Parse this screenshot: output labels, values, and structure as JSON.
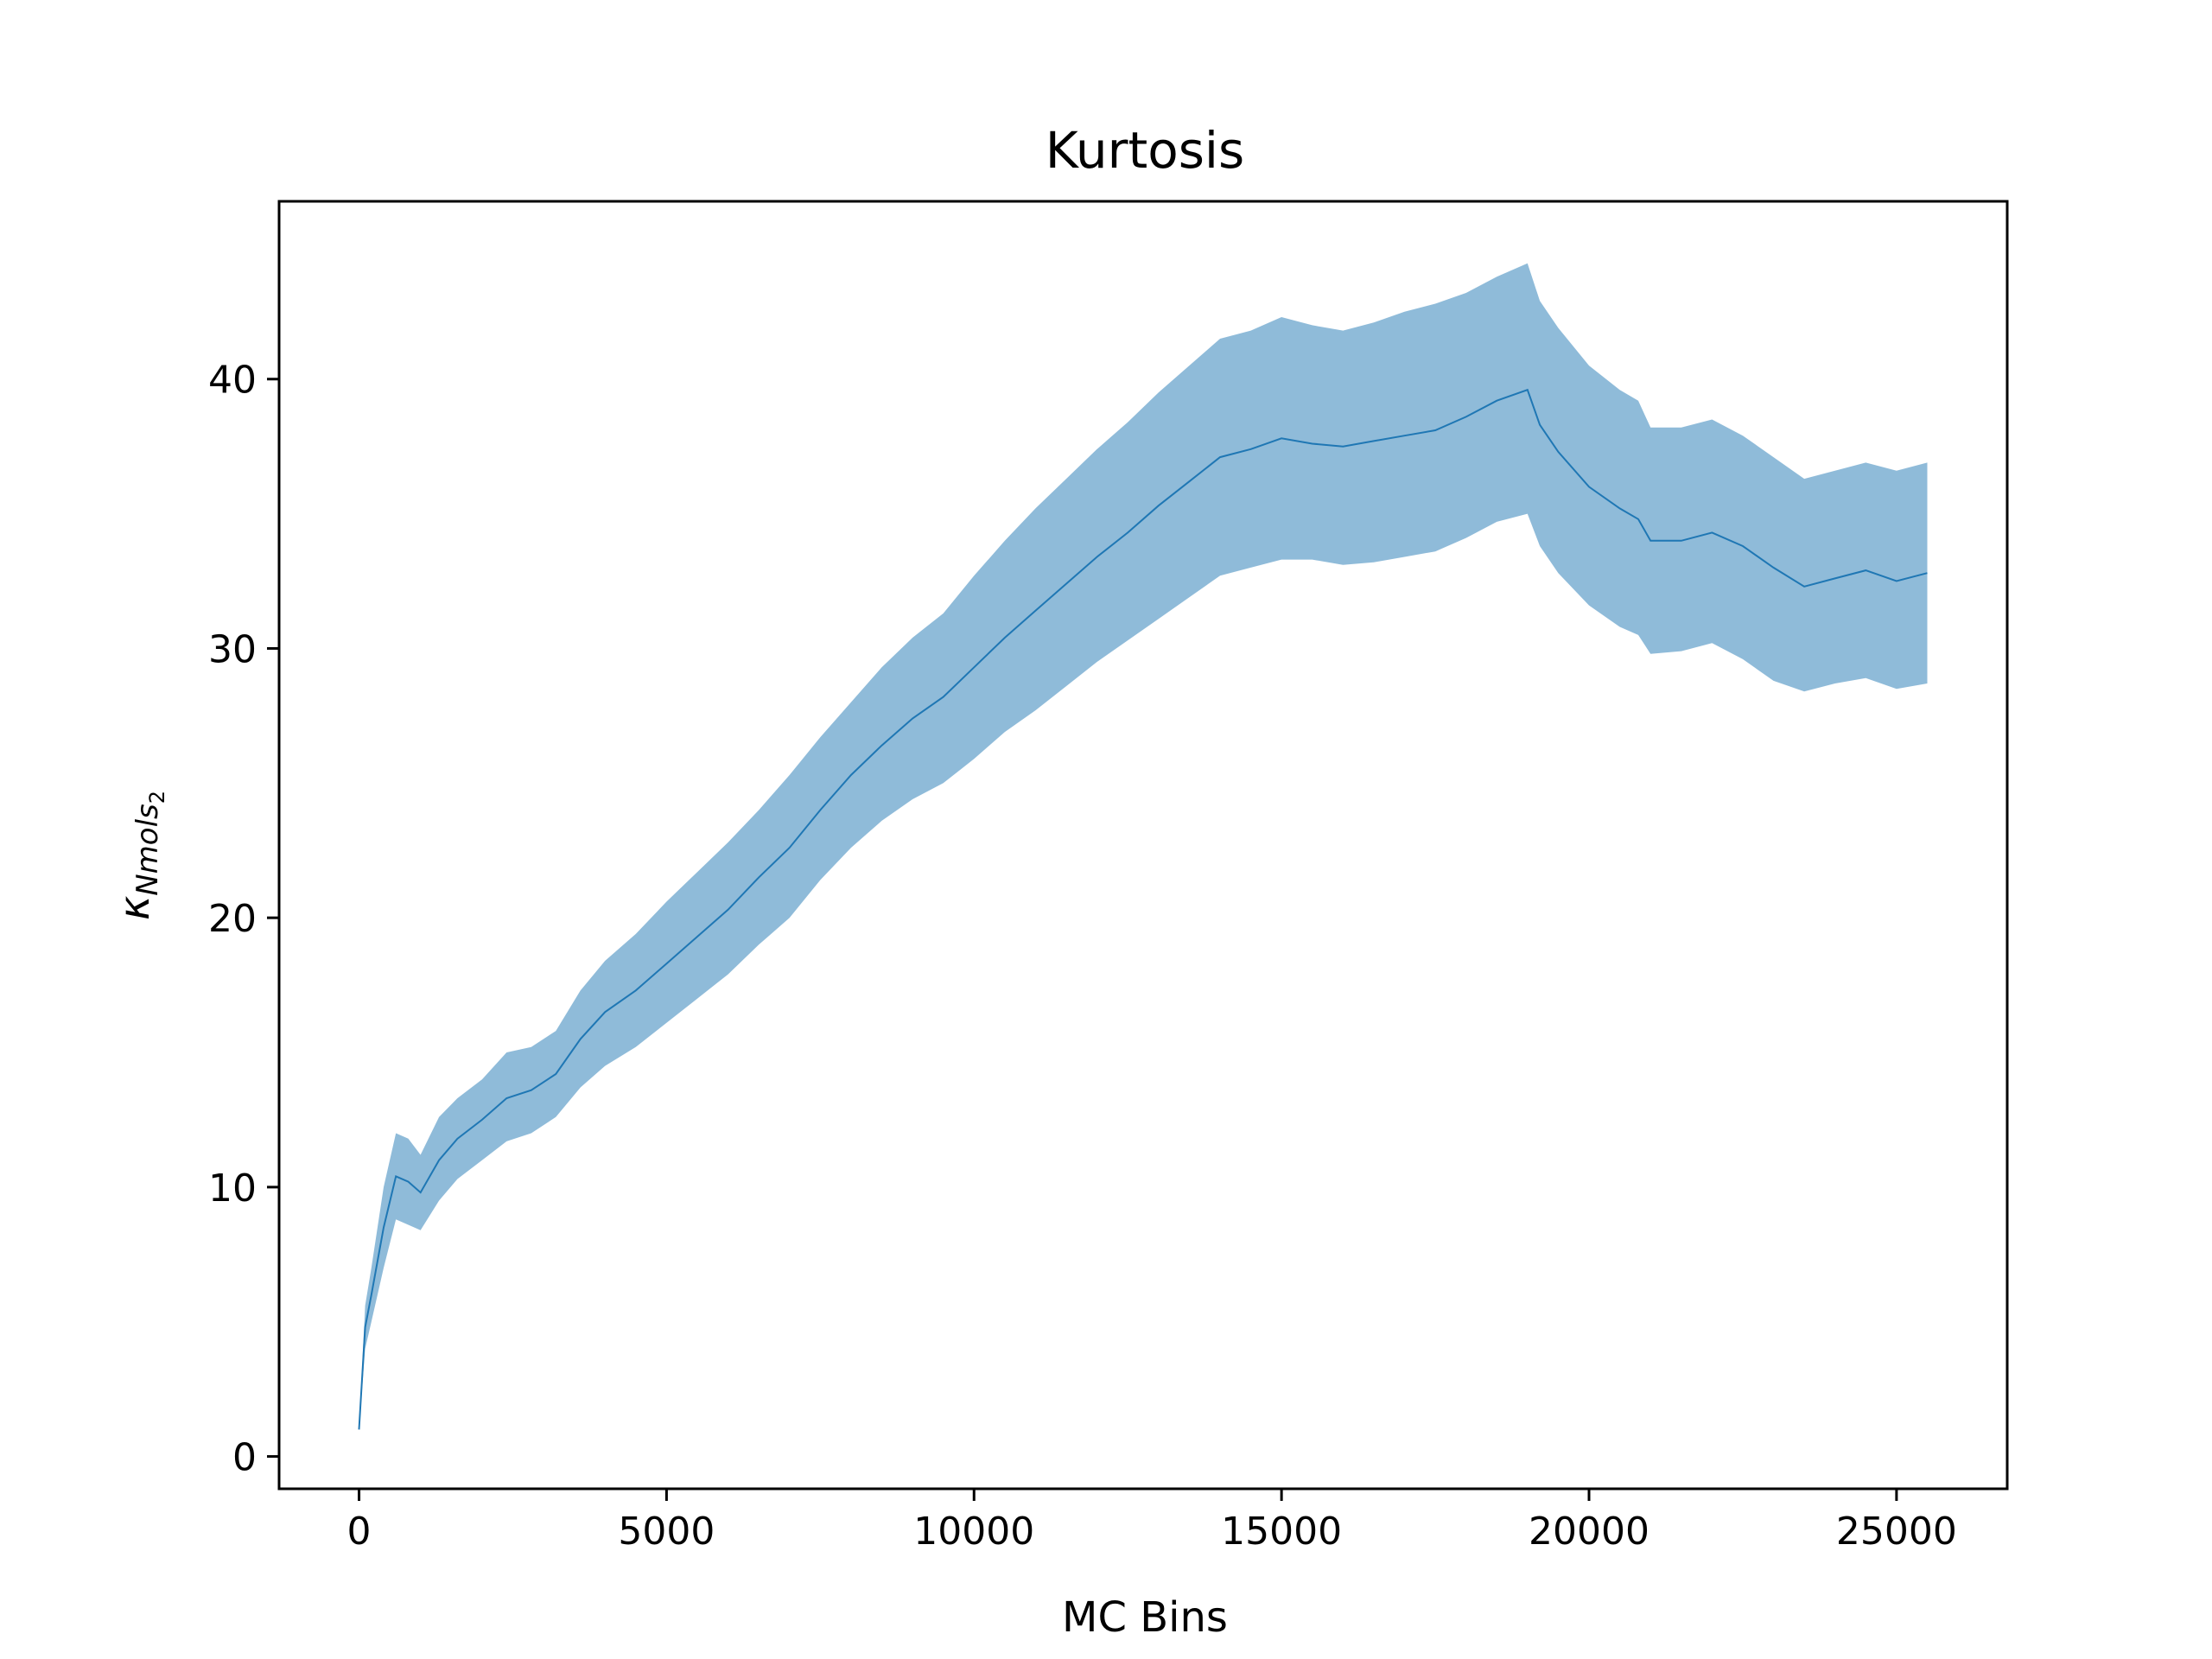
{
  "chart_data": {
    "type": "line",
    "title": "Kurtosis",
    "xlabel": "MC Bins",
    "ylabel_base": "κ",
    "ylabel_sub": "Nmols",
    "ylabel_subsub": "2",
    "xlim": [
      -1300,
      26800
    ],
    "ylim": [
      -1.2,
      46.6
    ],
    "xticks": [
      0,
      5000,
      10000,
      15000,
      20000,
      25000
    ],
    "yticks": [
      0,
      10,
      20,
      30,
      40
    ],
    "grid": false,
    "legend": "none",
    "colors": {
      "line": "#1f77b4",
      "band": "#1f77b4",
      "band_opacity": 0.5
    },
    "series": [
      {
        "x": [
          0,
          100,
          200,
          400,
          600,
          800,
          1000,
          1300,
          1600,
          2000,
          2400,
          2800,
          3200,
          3600,
          4000,
          4500,
          5000,
          5500,
          6000,
          6500,
          7000,
          7500,
          8000,
          8500,
          9000,
          9500,
          10000,
          10500,
          11000,
          11500,
          12000,
          12500,
          13000,
          13500,
          14000,
          14500,
          15000,
          15500,
          16000,
          16500,
          17000,
          17500,
          18000,
          18500,
          19000,
          19200,
          19500,
          20000,
          20500,
          20800,
          21000,
          21500,
          22000,
          22500,
          23000,
          23500,
          24000,
          24500,
          25000,
          25500
        ],
        "y": [
          1.0,
          4.8,
          6.0,
          8.5,
          10.4,
          10.2,
          9.8,
          11.0,
          11.8,
          12.5,
          13.3,
          13.6,
          14.2,
          15.5,
          16.5,
          17.3,
          18.3,
          19.3,
          20.3,
          21.5,
          22.6,
          24.0,
          25.3,
          26.4,
          27.4,
          28.2,
          29.3,
          30.4,
          31.4,
          32.4,
          33.4,
          34.3,
          35.3,
          36.2,
          37.1,
          37.4,
          37.8,
          37.6,
          37.5,
          37.7,
          37.9,
          38.1,
          38.6,
          39.2,
          39.6,
          38.3,
          37.3,
          36.0,
          35.2,
          34.8,
          34.0,
          34.0,
          34.3,
          33.8,
          33.0,
          32.3,
          32.6,
          32.9,
          32.5,
          32.8
        ],
        "lower": [
          1.0,
          4.0,
          5.0,
          7.0,
          8.8,
          8.6,
          8.4,
          9.5,
          10.3,
          11.0,
          11.7,
          12.0,
          12.6,
          13.7,
          14.5,
          15.2,
          16.1,
          17.0,
          17.9,
          19.0,
          20.0,
          21.4,
          22.6,
          23.6,
          24.4,
          25.0,
          25.9,
          26.9,
          27.7,
          28.6,
          29.5,
          30.3,
          31.1,
          31.9,
          32.7,
          33.0,
          33.3,
          33.3,
          33.1,
          33.2,
          33.4,
          33.6,
          34.1,
          34.7,
          35.0,
          33.8,
          32.8,
          31.6,
          30.8,
          30.5,
          29.8,
          29.9,
          30.2,
          29.6,
          28.8,
          28.4,
          28.7,
          28.9,
          28.5,
          28.7
        ],
        "upper": [
          1.0,
          5.6,
          7.0,
          10.0,
          12.0,
          11.8,
          11.2,
          12.6,
          13.3,
          14.0,
          15.0,
          15.2,
          15.8,
          17.3,
          18.4,
          19.4,
          20.6,
          21.7,
          22.8,
          24.0,
          25.3,
          26.7,
          28.0,
          29.3,
          30.4,
          31.3,
          32.7,
          34.0,
          35.2,
          36.3,
          37.4,
          38.4,
          39.5,
          40.5,
          41.5,
          41.8,
          42.3,
          42.0,
          41.8,
          42.1,
          42.5,
          42.8,
          43.2,
          43.8,
          44.3,
          42.9,
          41.9,
          40.5,
          39.6,
          39.2,
          38.2,
          38.2,
          38.5,
          37.9,
          37.1,
          36.3,
          36.6,
          36.9,
          36.6,
          36.9
        ]
      }
    ]
  }
}
